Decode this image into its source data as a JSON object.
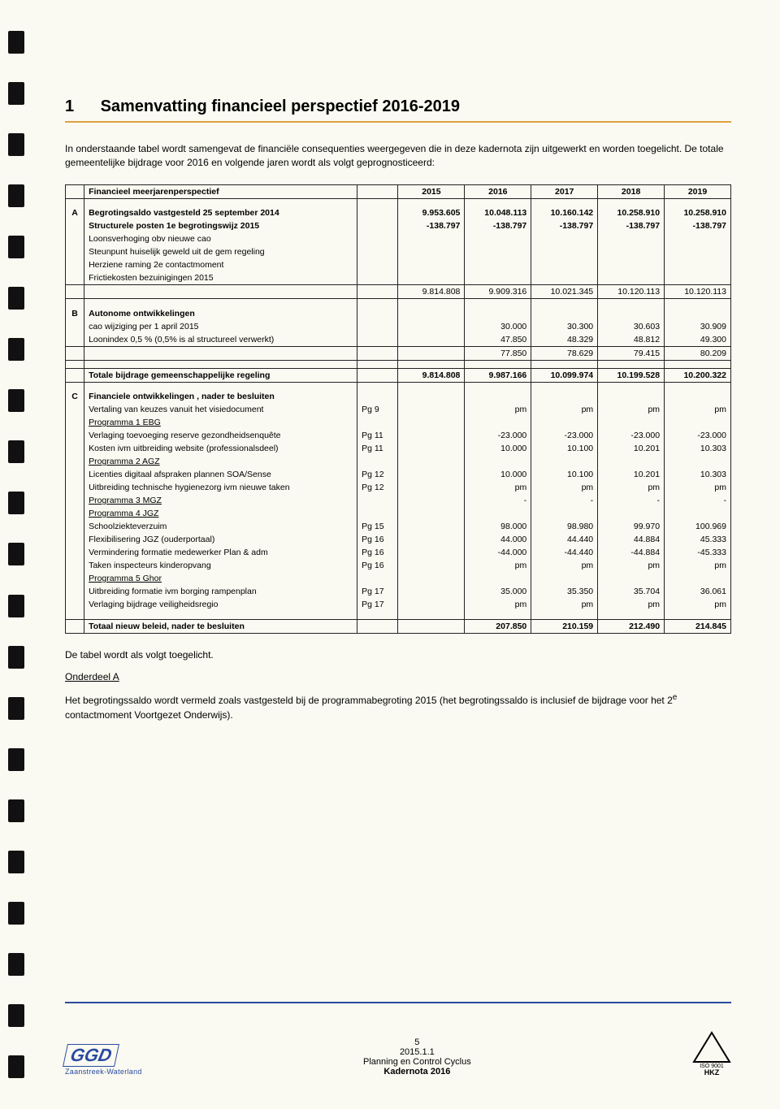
{
  "title": {
    "num": "1",
    "text": "Samenvatting financieel perspectief 2016-2019"
  },
  "intro": "In onderstaande tabel wordt samengevat de financiële consequenties weergegeven die in deze kadernota zijn uitgewerkt en worden toegelicht. De totale gemeentelijke bijdrage voor 2016 en volgende jaren wordt als volgt geprognosticeerd:",
  "table": {
    "header": {
      "label": "Financieel meerjarenperspectief",
      "years": [
        "2015",
        "2016",
        "2017",
        "2018",
        "2019"
      ]
    },
    "sectionA": {
      "letter": "A",
      "rows": [
        {
          "label": "Begrotingsaldo vastgesteld 25 september 2014",
          "bold": true,
          "vals": [
            "9.953.605",
            "10.048.113",
            "10.160.142",
            "10.258.910",
            "10.258.910"
          ]
        },
        {
          "label": "Structurele posten 1e begrotingswijz 2015",
          "bold": true,
          "vals": [
            "-138.797",
            "-138.797",
            "-138.797",
            "-138.797",
            "-138.797"
          ]
        },
        {
          "label": "Loonsverhoging obv nieuwe cao",
          "vals": [
            "",
            "",
            "",
            "",
            ""
          ]
        },
        {
          "label": "Steunpunt huiselijk geweld uit de gem regeling",
          "vals": [
            "",
            "",
            "",
            "",
            ""
          ]
        },
        {
          "label": "Herziene raming 2e contactmoment",
          "vals": [
            "",
            "",
            "",
            "",
            ""
          ]
        },
        {
          "label": "Frictiekosten bezuinigingen 2015",
          "vals": [
            "",
            "",
            "",
            "",
            ""
          ]
        }
      ],
      "subtotal": [
        "9.814.808",
        "9.909.316",
        "10.021.345",
        "10.120.113",
        "10.120.113"
      ]
    },
    "sectionB": {
      "letter": "B",
      "title": "Autonome ontwikkelingen",
      "rows": [
        {
          "label": "cao wijziging per 1 april 2015",
          "vals": [
            "",
            "30.000",
            "30.300",
            "30.603",
            "30.909"
          ]
        },
        {
          "label": "Loonindex 0,5 % (0,5% is al structureel verwerkt)",
          "vals": [
            "",
            "47.850",
            "48.329",
            "48.812",
            "49.300"
          ]
        }
      ],
      "subtotal": [
        "",
        "77.850",
        "78.629",
        "79.415",
        "80.209"
      ]
    },
    "totalRow": {
      "label": "Totale bijdrage gemeenschappelijke regeling",
      "vals": [
        "9.814.808",
        "9.987.166",
        "10.099.974",
        "10.199.528",
        "10.200.322"
      ]
    },
    "sectionC": {
      "letter": "C",
      "title": "Financiele ontwikkelingen , nader te besluiten",
      "rows": [
        {
          "label": "Vertaling van keuzes vanuit het visiedocument",
          "ref": "Pg 9",
          "vals": [
            "",
            "pm",
            "pm",
            "pm",
            "pm"
          ]
        },
        {
          "label": "Programma 1 EBG",
          "underline": true,
          "vals": [
            "",
            "",
            "",
            "",
            ""
          ]
        },
        {
          "label": "Verlaging toevoeging reserve gezondheidsenquête",
          "ref": "Pg 11",
          "vals": [
            "",
            "-23.000",
            "-23.000",
            "-23.000",
            "-23.000"
          ]
        },
        {
          "label": "Kosten ivm uitbreiding website (professionalsdeel)",
          "ref": "Pg 11",
          "vals": [
            "",
            "10.000",
            "10.100",
            "10.201",
            "10.303"
          ]
        },
        {
          "label": "Programma 2 AGZ",
          "underline": true,
          "vals": [
            "",
            "",
            "",
            "",
            ""
          ]
        },
        {
          "label": "Licenties digitaal afspraken plannen SOA/Sense",
          "ref": "Pg 12",
          "vals": [
            "",
            "10.000",
            "10.100",
            "10.201",
            "10.303"
          ]
        },
        {
          "label": "Uitbreiding technische hygienezorg ivm nieuwe taken",
          "ref": "Pg 12",
          "vals": [
            "",
            "pm",
            "pm",
            "pm",
            "pm"
          ]
        },
        {
          "label": "Programma 3 MGZ",
          "underline": true,
          "vals": [
            "",
            "-",
            "-",
            "-",
            "-"
          ]
        },
        {
          "label": "Programma 4 JGZ",
          "underline": true,
          "vals": [
            "",
            "",
            "",
            "",
            ""
          ]
        },
        {
          "label": "Schoolziekteverzuim",
          "ref": "Pg 15",
          "vals": [
            "",
            "98.000",
            "98.980",
            "99.970",
            "100.969"
          ]
        },
        {
          "label": "Flexibilisering JGZ (ouderportaal)",
          "ref": "Pg 16",
          "vals": [
            "",
            "44.000",
            "44.440",
            "44.884",
            "45.333"
          ]
        },
        {
          "label": "Vermindering formatie medewerker Plan & adm",
          "ref": "Pg 16",
          "vals": [
            "",
            "-44.000",
            "-44.440",
            "-44.884",
            "-45.333"
          ]
        },
        {
          "label": "Taken inspecteurs kinderopvang",
          "ref": "Pg 16",
          "vals": [
            "",
            "pm",
            "pm",
            "pm",
            "pm"
          ]
        },
        {
          "label": "Programma 5 Ghor",
          "underline": true,
          "vals": [
            "",
            "",
            "",
            "",
            ""
          ]
        },
        {
          "label": "Uitbreiding formatie ivm borging rampenplan",
          "ref": "Pg 17",
          "vals": [
            "",
            "35.000",
            "35.350",
            "35.704",
            "36.061"
          ]
        },
        {
          "label": "Verlaging bijdrage veiligheidsregio",
          "ref": "Pg 17",
          "vals": [
            "",
            "pm",
            "pm",
            "pm",
            "pm"
          ]
        }
      ],
      "subtotal": {
        "label": "Totaal nieuw beleid, nader te besluiten",
        "vals": [
          "",
          "207.850",
          "210.159",
          "212.490",
          "214.845"
        ]
      }
    }
  },
  "after": {
    "p1": "De tabel wordt als volgt toegelicht.",
    "h": "Onderdeel A",
    "p2a": "Het begrotingssaldo wordt vermeld zoals vastgesteld bij de programmabegroting 2015 (het begrotingssaldo is inclusief de bijdrage voor het 2",
    "p2sup": "e",
    "p2b": " contactmoment Voortgezet Onderwijs)."
  },
  "footer": {
    "logo": "GGD",
    "logosub": "Zaanstreek-Waterland",
    "pagenum": "5",
    "date": "2015.1.1",
    "line2": "Planning en Control Cyclus",
    "line3": "Kadernota 2016",
    "hkz_top": "ISO 9001",
    "hkz": "HKZ"
  }
}
